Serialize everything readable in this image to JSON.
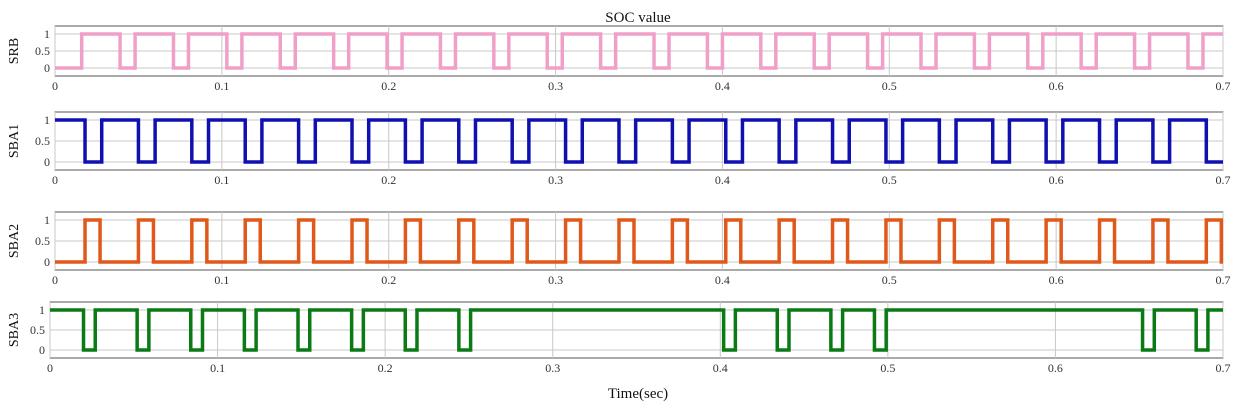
{
  "figure": {
    "title": "SOC value",
    "xlabel": "Time(sec)"
  },
  "chart_data": [
    {
      "type": "line",
      "title": "SOC value",
      "xlabel": "",
      "ylabel": "SRB",
      "xlim": [
        0,
        0.7
      ],
      "ylim": [
        0,
        1
      ],
      "xticks": [
        "0",
        "0.1",
        "0.2",
        "0.3",
        "0.4",
        "0.5",
        "0.6",
        "0.7"
      ],
      "yticks": [
        "0",
        "0.5",
        "1"
      ],
      "grid": true,
      "color": "#f0a0c8",
      "series": [
        {
          "high_intervals": [
            [
              0.016,
              0.039
            ],
            [
              0.048,
              0.071
            ],
            [
              0.08,
              0.103
            ],
            [
              0.112,
              0.135
            ],
            [
              0.144,
              0.167
            ],
            [
              0.176,
              0.199
            ],
            [
              0.208,
              0.231
            ],
            [
              0.24,
              0.263
            ],
            [
              0.272,
              0.295
            ],
            [
              0.304,
              0.327
            ],
            [
              0.336,
              0.359
            ],
            [
              0.368,
              0.391
            ],
            [
              0.4,
              0.423
            ],
            [
              0.432,
              0.455
            ],
            [
              0.464,
              0.487
            ],
            [
              0.496,
              0.519
            ],
            [
              0.528,
              0.551
            ],
            [
              0.56,
              0.583
            ],
            [
              0.592,
              0.615
            ],
            [
              0.624,
              0.647
            ],
            [
              0.656,
              0.679
            ],
            [
              0.688,
              0.7
            ]
          ]
        }
      ]
    },
    {
      "type": "line",
      "title": "",
      "xlabel": "",
      "ylabel": "SBA1",
      "xlim": [
        0,
        0.7
      ],
      "ylim": [
        0,
        1
      ],
      "xticks": [
        "0",
        "0.1",
        "0.2",
        "0.3",
        "0.4",
        "0.5",
        "0.6",
        "0.7"
      ],
      "yticks": [
        "0",
        "0.5",
        "1"
      ],
      "grid": true,
      "color": "#1010b0",
      "series": [
        {
          "high_intervals": [
            [
              0,
              0.018
            ],
            [
              0.028,
              0.05
            ],
            [
              0.06,
              0.082
            ],
            [
              0.092,
              0.114
            ],
            [
              0.124,
              0.146
            ],
            [
              0.156,
              0.178
            ],
            [
              0.188,
              0.21
            ],
            [
              0.22,
              0.242
            ],
            [
              0.252,
              0.274
            ],
            [
              0.284,
              0.306
            ],
            [
              0.316,
              0.338
            ],
            [
              0.348,
              0.37
            ],
            [
              0.38,
              0.402
            ],
            [
              0.412,
              0.434
            ],
            [
              0.444,
              0.466
            ],
            [
              0.476,
              0.498
            ],
            [
              0.508,
              0.53
            ],
            [
              0.54,
              0.562
            ],
            [
              0.572,
              0.594
            ],
            [
              0.604,
              0.626
            ],
            [
              0.636,
              0.658
            ],
            [
              0.668,
              0.69
            ]
          ]
        }
      ]
    },
    {
      "type": "line",
      "title": "",
      "xlabel": "",
      "ylabel": "SBA2",
      "xlim": [
        0,
        0.7
      ],
      "ylim": [
        0,
        1
      ],
      "xticks": [
        "0",
        "0.1",
        "0.2",
        "0.3",
        "0.4",
        "0.5",
        "0.6",
        "0.7"
      ],
      "yticks": [
        "0",
        "0.5",
        "1"
      ],
      "grid": true,
      "color": "#e0581a",
      "series": [
        {
          "high_intervals": [
            [
              0.018,
              0.027
            ],
            [
              0.05,
              0.059
            ],
            [
              0.082,
              0.091
            ],
            [
              0.114,
              0.123
            ],
            [
              0.146,
              0.155
            ],
            [
              0.178,
              0.187
            ],
            [
              0.21,
              0.219
            ],
            [
              0.242,
              0.251
            ],
            [
              0.274,
              0.283
            ],
            [
              0.306,
              0.315
            ],
            [
              0.338,
              0.347
            ],
            [
              0.37,
              0.379
            ],
            [
              0.402,
              0.411
            ],
            [
              0.434,
              0.443
            ],
            [
              0.466,
              0.475
            ],
            [
              0.498,
              0.507
            ],
            [
              0.53,
              0.539
            ],
            [
              0.562,
              0.571
            ],
            [
              0.594,
              0.603
            ],
            [
              0.626,
              0.635
            ],
            [
              0.658,
              0.667
            ],
            [
              0.69,
              0.699
            ]
          ]
        }
      ]
    },
    {
      "type": "line",
      "title": "",
      "xlabel": "Time(sec)",
      "ylabel": "SBA3",
      "xlim": [
        0,
        0.7
      ],
      "ylim": [
        0,
        1
      ],
      "xticks": [
        "0",
        "0.1",
        "0.2",
        "0.3",
        "0.4",
        "0.5",
        "0.6",
        "0.7"
      ],
      "yticks": [
        "0",
        "0.5",
        "1"
      ],
      "grid": true,
      "color": "#0a7a14",
      "series": [
        {
          "low_intervals": [
            [
              0.02,
              0.027
            ],
            [
              0.052,
              0.059
            ],
            [
              0.084,
              0.091
            ],
            [
              0.116,
              0.123
            ],
            [
              0.148,
              0.155
            ],
            [
              0.18,
              0.187
            ],
            [
              0.212,
              0.219
            ],
            [
              0.244,
              0.251
            ],
            [
              0.402,
              0.409
            ],
            [
              0.434,
              0.441
            ],
            [
              0.466,
              0.473
            ],
            [
              0.492,
              0.499
            ],
            [
              0.652,
              0.659
            ],
            [
              0.684,
              0.691
            ]
          ]
        }
      ]
    }
  ]
}
